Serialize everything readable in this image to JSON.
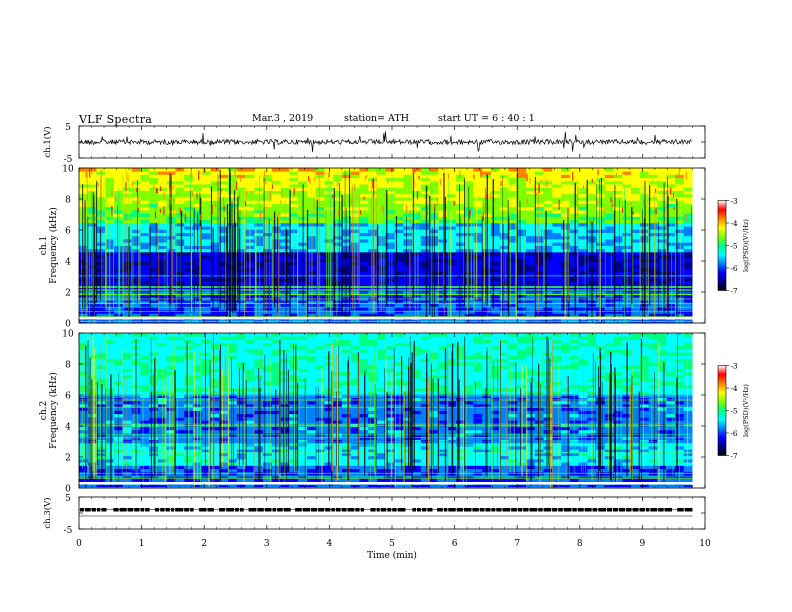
{
  "header": {
    "title": "VLF  Spectra",
    "date": "Mar.3   , 2019",
    "station": "station= ATH",
    "start": "start  UT  =   6  : 40 : 1"
  },
  "chart_data": [
    {
      "type": "line",
      "panel": "waveform",
      "ylabel": "ch.1(V)",
      "ytick_labels": [
        "5",
        "-5"
      ],
      "ylim": [
        -5,
        5
      ],
      "xlim": [
        0,
        10
      ]
    },
    {
      "type": "heatmap",
      "panel": "spectrogram",
      "ylabel_top": "ch.1",
      "ylabel": "Frequency  (kHz)",
      "ytick_labels": [
        "0",
        "2",
        "4",
        "6",
        "8",
        "10"
      ],
      "ylim": [
        0,
        10
      ],
      "xlim": [
        0,
        9.8
      ],
      "colorbar": {
        "label": "log(PSD)(V²/Hz)",
        "ticks": [
          "-3",
          "-4",
          "-5",
          "-6",
          "-7"
        ],
        "range": [
          -7,
          -3
        ]
      }
    },
    {
      "type": "heatmap",
      "panel": "spectrogram",
      "ylabel_top": "ch.2",
      "ylabel": "Frequency  (kHz)",
      "ytick_labels": [
        "0",
        "2",
        "4",
        "6",
        "8",
        "10"
      ],
      "ylim": [
        0,
        10
      ],
      "xlim": [
        0,
        9.8
      ],
      "colorbar": {
        "label": "log(PSD)(V²/Hz)",
        "ticks": [
          "-3",
          "-4",
          "-5",
          "-6",
          "-7"
        ],
        "range": [
          -7,
          -3
        ]
      }
    },
    {
      "type": "line",
      "panel": "waveform",
      "ylabel": "ch.3(V)",
      "ytick_labels": [
        "5",
        "-5"
      ],
      "ylim": [
        -5,
        5
      ],
      "xlim": [
        0,
        10
      ]
    }
  ],
  "xaxis": {
    "label": "Time  (min)",
    "tick_labels": [
      "0",
      "1",
      "2",
      "3",
      "4",
      "5",
      "6",
      "7",
      "8",
      "9",
      "10"
    ]
  },
  "colors": {
    "colormap": [
      "#000000",
      "#00008b",
      "#0000ff",
      "#0080ff",
      "#00ffff",
      "#00ff80",
      "#80ff00",
      "#ffff00",
      "#ff8000",
      "#ff0000",
      "#ffffff"
    ]
  }
}
